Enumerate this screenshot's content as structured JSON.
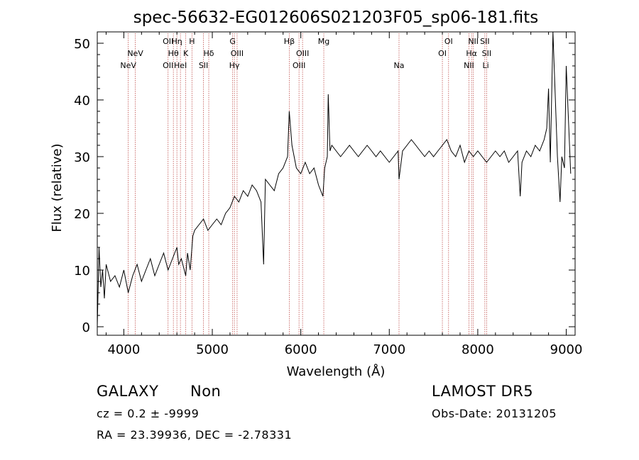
{
  "chart_data": {
    "type": "line",
    "title": "spec-56632-EG012606S021203F05_sp06-181.fits",
    "xlabel": "Wavelength (Å)",
    "ylabel": "Flux (relative)",
    "xlim": [
      3700,
      9100
    ],
    "ylim": [
      -1.5,
      52
    ],
    "xticks": [
      4000,
      5000,
      6000,
      7000,
      8000,
      9000
    ],
    "yticks": [
      0,
      10,
      20,
      30,
      40,
      50
    ],
    "grid": false,
    "series": [
      {
        "color": "#000000",
        "x": [
          3700,
          3720,
          3740,
          3760,
          3780,
          3800,
          3850,
          3900,
          3950,
          4000,
          4050,
          4100,
          4150,
          4200,
          4250,
          4300,
          4350,
          4400,
          4450,
          4500,
          4550,
          4600,
          4620,
          4650,
          4700,
          4720,
          4750,
          4780,
          4800,
          4850,
          4900,
          4950,
          5000,
          5050,
          5100,
          5150,
          5200,
          5250,
          5300,
          5350,
          5400,
          5450,
          5500,
          5550,
          5580,
          5600,
          5650,
          5700,
          5750,
          5800,
          5850,
          5870,
          5900,
          5950,
          6000,
          6050,
          6100,
          6150,
          6200,
          6250,
          6270,
          6300,
          6310,
          6330,
          6350,
          6400,
          6450,
          6500,
          6550,
          6600,
          6650,
          6700,
          6750,
          6800,
          6850,
          6900,
          6950,
          7000,
          7050,
          7100,
          7110,
          7150,
          7200,
          7250,
          7300,
          7350,
          7400,
          7450,
          7500,
          7550,
          7600,
          7650,
          7700,
          7750,
          7800,
          7850,
          7900,
          7950,
          8000,
          8050,
          8100,
          8150,
          8200,
          8250,
          8300,
          8350,
          8400,
          8450,
          8480,
          8500,
          8550,
          8600,
          8650,
          8700,
          8750,
          8780,
          8800,
          8820,
          8850,
          8900,
          8930,
          8950,
          8980,
          9000,
          9050
        ],
        "y": [
          0,
          14,
          7,
          10,
          5,
          11,
          8,
          9,
          7,
          10,
          6,
          9,
          11,
          8,
          10,
          12,
          9,
          11,
          13,
          10,
          12,
          14,
          11,
          12,
          9,
          13,
          10,
          16,
          17,
          18,
          19,
          17,
          18,
          19,
          18,
          20,
          21,
          23,
          22,
          24,
          23,
          25,
          24,
          22,
          11,
          26,
          25,
          24,
          27,
          28,
          30,
          38,
          32,
          28,
          27,
          29,
          27,
          28,
          25,
          23,
          28,
          30,
          41,
          31,
          32,
          31,
          30,
          31,
          32,
          31,
          30,
          31,
          32,
          31,
          30,
          31,
          30,
          29,
          30,
          31,
          26,
          31,
          32,
          33,
          32,
          31,
          30,
          31,
          30,
          31,
          32,
          33,
          31,
          30,
          32,
          29,
          31,
          30,
          31,
          30,
          29,
          30,
          31,
          30,
          31,
          29,
          30,
          31,
          23,
          29,
          31,
          30,
          32,
          31,
          33,
          35,
          42,
          29,
          52,
          30,
          22,
          30,
          28,
          46,
          27
        ]
      }
    ],
    "line_labels": [
      {
        "x": 4050,
        "row": 3,
        "text": "NeV"
      },
      {
        "x": 4130,
        "row": 2,
        "text": "NeV"
      },
      {
        "x": 4500,
        "row": 1,
        "text": "OII"
      },
      {
        "x": 4500,
        "row": 3,
        "text": "OII"
      },
      {
        "x": 4560,
        "row": 2,
        "text": "Hθ"
      },
      {
        "x": 4600,
        "row": 1,
        "text": "Hη"
      },
      {
        "x": 4640,
        "row": 3,
        "text": "HeI"
      },
      {
        "x": 4700,
        "row": 2,
        "text": "K"
      },
      {
        "x": 4770,
        "row": 1,
        "text": "H"
      },
      {
        "x": 4900,
        "row": 3,
        "text": "SII"
      },
      {
        "x": 4960,
        "row": 2,
        "text": "Hδ"
      },
      {
        "x": 5230,
        "row": 1,
        "text": "G"
      },
      {
        "x": 5250,
        "row": 3,
        "text": "Hγ"
      },
      {
        "x": 5280,
        "row": 2,
        "text": "OIII"
      },
      {
        "x": 5870,
        "row": 1,
        "text": "Hβ"
      },
      {
        "x": 5980,
        "row": 3,
        "text": "OIII"
      },
      {
        "x": 6020,
        "row": 2,
        "text": "OIII"
      },
      {
        "x": 6260,
        "row": 1,
        "text": "Mg"
      },
      {
        "x": 7110,
        "row": 3,
        "text": "Na"
      },
      {
        "x": 7600,
        "row": 2,
        "text": "OI"
      },
      {
        "x": 7670,
        "row": 1,
        "text": "OI"
      },
      {
        "x": 7900,
        "row": 3,
        "text": "NII"
      },
      {
        "x": 7930,
        "row": 2,
        "text": "Hα"
      },
      {
        "x": 7950,
        "row": 1,
        "text": "NII"
      },
      {
        "x": 8080,
        "row": 1,
        "text": "SII"
      },
      {
        "x": 8100,
        "row": 2,
        "text": "SII"
      },
      {
        "x": 8090,
        "row": 3,
        "text": "Li"
      }
    ],
    "line_positions": [
      4050,
      4130,
      4500,
      4560,
      4600,
      4640,
      4700,
      4770,
      4900,
      4960,
      5230,
      5250,
      5280,
      5870,
      5980,
      6020,
      6260,
      7110,
      7600,
      7670,
      7900,
      7930,
      7950,
      8080,
      8100
    ],
    "line_color": "#c0504d"
  },
  "footer": {
    "class_label": "GALAXY",
    "subclass_label": "Non",
    "survey_label": "LAMOST DR5",
    "cz_text": "cz = 0.2 ± -9999",
    "obs_date_text": "Obs-Date: 20131205",
    "coords_text": "RA =  23.39936, DEC =  -2.78331"
  }
}
